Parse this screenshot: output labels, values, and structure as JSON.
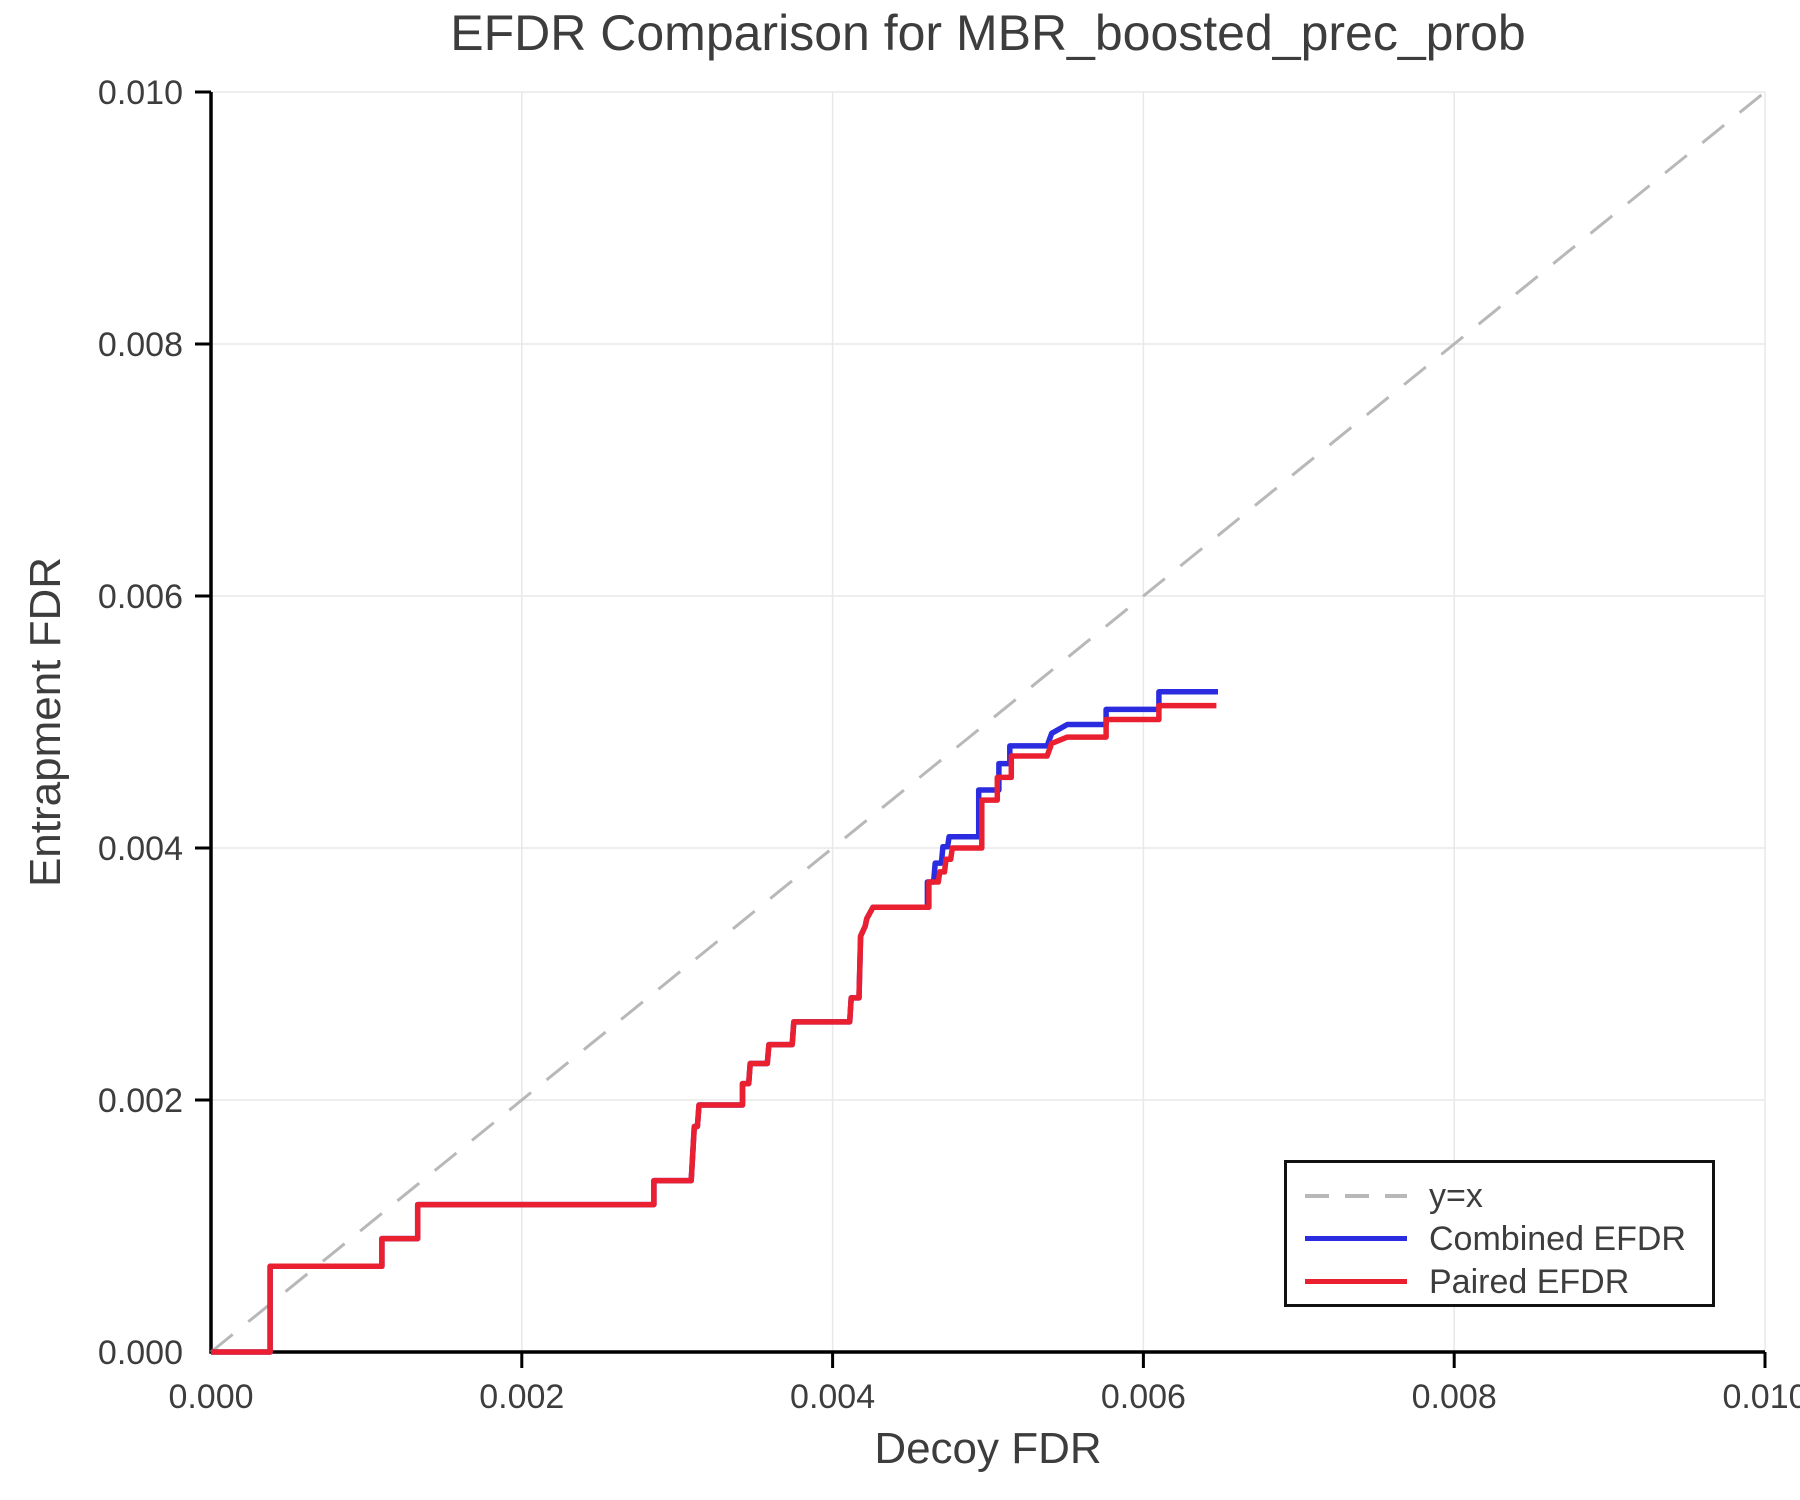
{
  "title": "EFDR Comparison for MBR_boosted_prec_prob",
  "axes": {
    "x_label": "Decoy FDR",
    "y_label": "Entrapment FDR",
    "x_tick_labels": [
      "0.000",
      "0.002",
      "0.004",
      "0.006",
      "0.008",
      "0.010"
    ],
    "y_tick_labels": [
      "0.000",
      "0.002",
      "0.004",
      "0.006",
      "0.008",
      "0.010"
    ]
  },
  "legend": {
    "items": [
      {
        "label": "y=x",
        "color": "#b8b8b8",
        "style": "dashed"
      },
      {
        "label": "Combined EFDR",
        "color": "#2b2bdf",
        "style": "solid"
      },
      {
        "label": "Paired EFDR",
        "color": "#ea2030",
        "style": "solid"
      }
    ]
  },
  "colors": {
    "grid": "#e8e8e8",
    "axis": "#000000",
    "text": "#3d3d3d",
    "background": "#ffffff"
  },
  "chart_data": {
    "type": "line",
    "title": "EFDR Comparison for MBR_boosted_prec_prob",
    "xlabel": "Decoy FDR",
    "ylabel": "Entrapment FDR",
    "xlim": [
      0.0,
      0.01
    ],
    "ylim": [
      0.0,
      0.01
    ],
    "grid": true,
    "legend_position": "lower right",
    "series": [
      {
        "name": "y=x",
        "color": "#b8b8b8",
        "style": "dashed",
        "points": [
          [
            0.0,
            0.0
          ],
          [
            0.01,
            0.01
          ]
        ]
      },
      {
        "name": "Combined EFDR",
        "color": "#2b2bdf",
        "style": "solid",
        "points": [
          [
            0.0,
            0.0
          ],
          [
            0.00038,
            0.0
          ],
          [
            0.00038,
            0.00068
          ],
          [
            0.0011,
            0.00068
          ],
          [
            0.0011,
            0.0009
          ],
          [
            0.00133,
            0.0009
          ],
          [
            0.00133,
            0.00117
          ],
          [
            0.00285,
            0.00117
          ],
          [
            0.00285,
            0.00136
          ],
          [
            0.00309,
            0.00136
          ],
          [
            0.00311,
            0.00179
          ],
          [
            0.00313,
            0.00179
          ],
          [
            0.00314,
            0.00196
          ],
          [
            0.00342,
            0.00196
          ],
          [
            0.00342,
            0.00213
          ],
          [
            0.00346,
            0.00213
          ],
          [
            0.00347,
            0.00229
          ],
          [
            0.00358,
            0.00229
          ],
          [
            0.00359,
            0.00244
          ],
          [
            0.00374,
            0.00244
          ],
          [
            0.00375,
            0.00262
          ],
          [
            0.00411,
            0.00262
          ],
          [
            0.00412,
            0.00281
          ],
          [
            0.00417,
            0.00281
          ],
          [
            0.00418,
            0.0033
          ],
          [
            0.00421,
            0.00338
          ],
          [
            0.00422,
            0.00344
          ],
          [
            0.00426,
            0.00353
          ],
          [
            0.00461,
            0.00353
          ],
          [
            0.00461,
            0.00373
          ],
          [
            0.00465,
            0.00373
          ],
          [
            0.00466,
            0.00388
          ],
          [
            0.0047,
            0.00388
          ],
          [
            0.00471,
            0.00401
          ],
          [
            0.00474,
            0.00401
          ],
          [
            0.00475,
            0.00409
          ],
          [
            0.00494,
            0.00409
          ],
          [
            0.00494,
            0.00446
          ],
          [
            0.00507,
            0.00446
          ],
          [
            0.00507,
            0.00467
          ],
          [
            0.00514,
            0.00467
          ],
          [
            0.00514,
            0.00481
          ],
          [
            0.00538,
            0.00481
          ],
          [
            0.00541,
            0.00491
          ],
          [
            0.00551,
            0.00498
          ],
          [
            0.00576,
            0.00498
          ],
          [
            0.00576,
            0.0051
          ],
          [
            0.0061,
            0.0051
          ],
          [
            0.0061,
            0.00524
          ],
          [
            0.00648,
            0.00524
          ]
        ]
      },
      {
        "name": "Paired EFDR",
        "color": "#ea2030",
        "style": "solid",
        "points": [
          [
            0.0,
            0.0
          ],
          [
            0.00038,
            0.0
          ],
          [
            0.00038,
            0.00068
          ],
          [
            0.0011,
            0.00068
          ],
          [
            0.0011,
            0.0009
          ],
          [
            0.00133,
            0.0009
          ],
          [
            0.00133,
            0.00117
          ],
          [
            0.00285,
            0.00117
          ],
          [
            0.00285,
            0.00136
          ],
          [
            0.00309,
            0.00136
          ],
          [
            0.00311,
            0.00179
          ],
          [
            0.00313,
            0.00179
          ],
          [
            0.00314,
            0.00196
          ],
          [
            0.00342,
            0.00196
          ],
          [
            0.00342,
            0.00213
          ],
          [
            0.00346,
            0.00213
          ],
          [
            0.00347,
            0.00229
          ],
          [
            0.00358,
            0.00229
          ],
          [
            0.00359,
            0.00244
          ],
          [
            0.00374,
            0.00244
          ],
          [
            0.00375,
            0.00262
          ],
          [
            0.00411,
            0.00262
          ],
          [
            0.00412,
            0.00281
          ],
          [
            0.00417,
            0.00281
          ],
          [
            0.00418,
            0.0033
          ],
          [
            0.00421,
            0.00338
          ],
          [
            0.00422,
            0.00344
          ],
          [
            0.00426,
            0.00353
          ],
          [
            0.00462,
            0.00353
          ],
          [
            0.00462,
            0.00373
          ],
          [
            0.00468,
            0.00373
          ],
          [
            0.00469,
            0.00381
          ],
          [
            0.00472,
            0.00381
          ],
          [
            0.00473,
            0.00391
          ],
          [
            0.00476,
            0.00391
          ],
          [
            0.00477,
            0.004
          ],
          [
            0.00496,
            0.004
          ],
          [
            0.00496,
            0.00438
          ],
          [
            0.00506,
            0.00438
          ],
          [
            0.00506,
            0.00456
          ],
          [
            0.00515,
            0.00456
          ],
          [
            0.00515,
            0.00473
          ],
          [
            0.00538,
            0.00473
          ],
          [
            0.00541,
            0.00483
          ],
          [
            0.00551,
            0.00488
          ],
          [
            0.00576,
            0.00488
          ],
          [
            0.00576,
            0.00502
          ],
          [
            0.0061,
            0.00502
          ],
          [
            0.0061,
            0.00513
          ],
          [
            0.00647,
            0.00513
          ]
        ]
      }
    ]
  }
}
